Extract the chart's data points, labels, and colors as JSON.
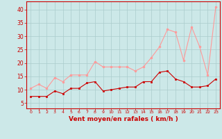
{
  "x": [
    0,
    1,
    2,
    3,
    4,
    5,
    6,
    7,
    8,
    9,
    10,
    11,
    12,
    13,
    14,
    15,
    16,
    17,
    18,
    19,
    20,
    21,
    22,
    23
  ],
  "mean_wind": [
    7.5,
    7.5,
    7.5,
    9.5,
    8.5,
    10.5,
    10.5,
    12.5,
    13,
    9.5,
    10,
    10.5,
    11,
    11,
    13,
    13,
    16.5,
    17,
    14,
    13,
    11,
    11,
    11.5,
    14
  ],
  "gust_wind": [
    10.5,
    12,
    10.5,
    14.5,
    13,
    15.5,
    15.5,
    15.5,
    20.5,
    18.5,
    18.5,
    18.5,
    18.5,
    17,
    18.5,
    22,
    26,
    32.5,
    31.5,
    21,
    33.5,
    26,
    15.5,
    41
  ],
  "mean_color": "#cc0000",
  "gust_color": "#ff9999",
  "bg_color": "#cce8e8",
  "grid_color": "#aacccc",
  "xlabel": "Vent moyen/en rafales ( km/h )",
  "xlabel_color": "#cc0000",
  "tick_color": "#cc0000",
  "ylabel_ticks": [
    5,
    10,
    15,
    20,
    25,
    30,
    35,
    40
  ],
  "ylim": [
    3,
    43
  ],
  "xlim": [
    -0.5,
    23.5
  ]
}
